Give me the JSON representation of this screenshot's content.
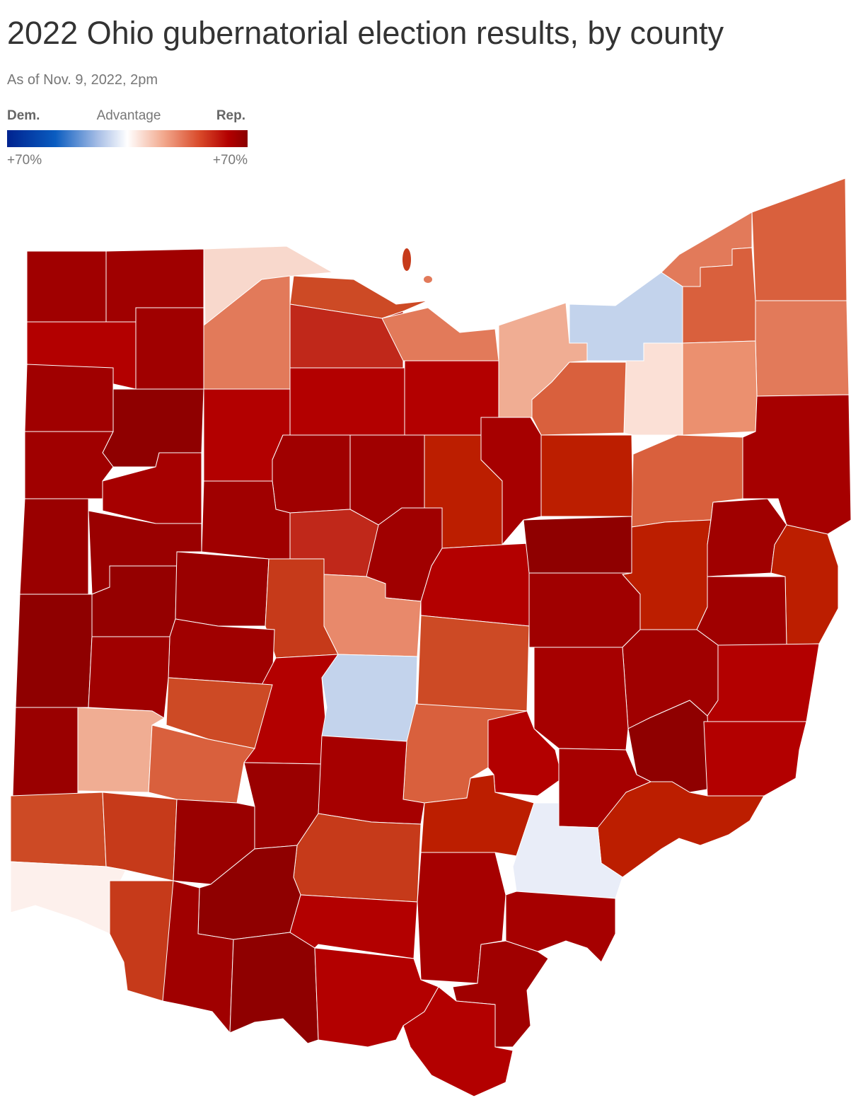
{
  "title": "2022 Ohio gubernatorial election results, by county",
  "subtitle": "As of Nov. 9, 2022, 2pm",
  "legend": {
    "left_label": "Dem.",
    "center_label": "Advantage",
    "right_label": "Rep.",
    "min_label": "+70%",
    "max_label": "+70%"
  }
}
